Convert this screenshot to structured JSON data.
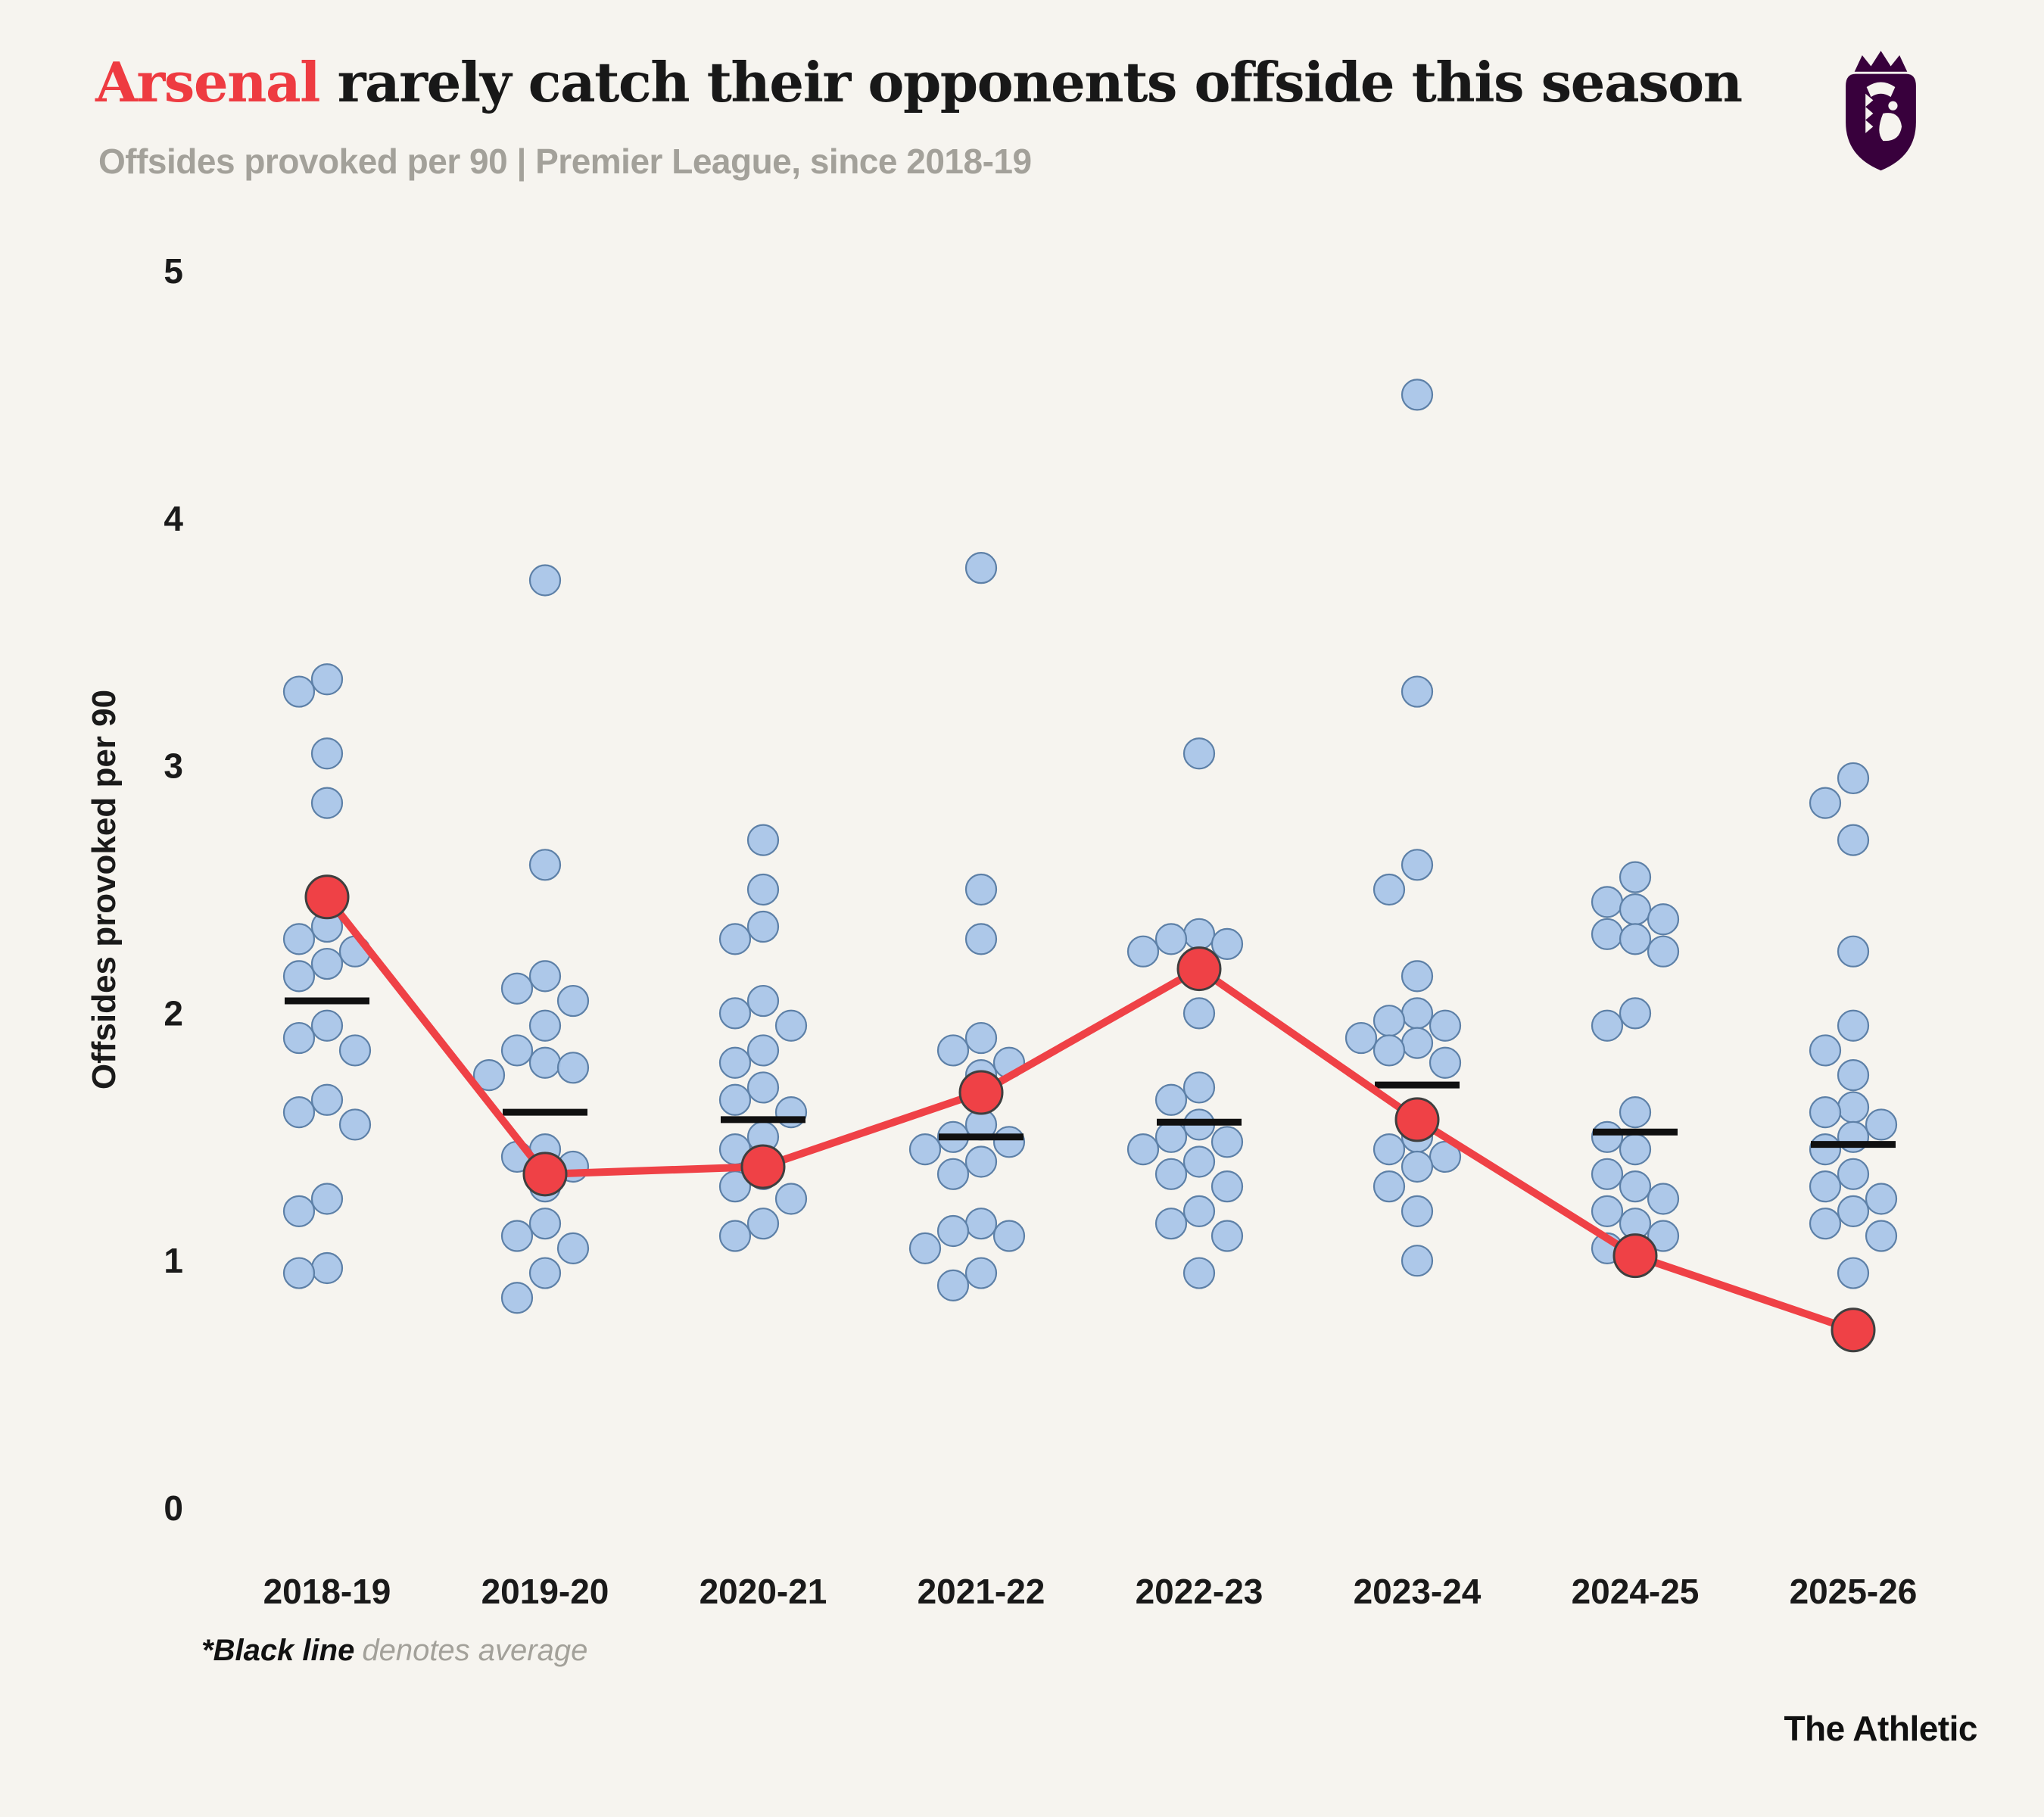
{
  "header": {
    "title_team": "Arsenal",
    "title_rest": " rarely catch their opponents offside this season",
    "subtitle": "Offsides provoked per 90 | Premier League, since 2018-19"
  },
  "footnote": {
    "emphasis": "*Black line",
    "rest": "denotes average"
  },
  "branding": {
    "credit": "The Athletic",
    "logo_name": "premier-league-crest"
  },
  "colors": {
    "background": "#f6f4ef",
    "accent_red": "#ef4146",
    "red_dot_stroke": "#3f3f3f",
    "dot_blue": "#a9c5e8",
    "dot_blue_stroke": "#5d80a7",
    "average_black": "#101010",
    "title_red": "#ee3b41",
    "subtitle_gray": "#a3a19a",
    "axis_text": "#1a1a1a",
    "crest_purple": "#38003c"
  },
  "chart_data": {
    "type": "scatter",
    "title": "Arsenal rarely catch their opponents offside this season",
    "subtitle": "Offsides provoked per 90 | Premier League, since 2018-19",
    "ylabel": "Offsides provoked per 90",
    "xlabel": "",
    "ylim": [
      0,
      5
    ],
    "yticks": [
      0,
      1,
      2,
      3,
      4,
      5
    ],
    "grid": false,
    "legend": "none",
    "categories": [
      "2018-19",
      "2019-20",
      "2020-21",
      "2021-22",
      "2022-23",
      "2023-24",
      "2024-25",
      "2025-26"
    ],
    "series": [
      {
        "name": "Arsenal",
        "values": [
          2.47,
          1.35,
          1.38,
          1.68,
          2.18,
          1.57,
          1.02,
          0.72
        ]
      },
      {
        "name": "League average (black line)",
        "values": [
          2.05,
          1.6,
          1.57,
          1.5,
          1.56,
          1.71,
          1.52,
          1.47
        ]
      }
    ],
    "team_values": [
      [
        3.35,
        3.3,
        3.05,
        2.85,
        2.35,
        2.3,
        2.25,
        2.2,
        2.15,
        1.95,
        1.9,
        1.85,
        1.65,
        1.6,
        1.55,
        1.25,
        1.2,
        0.97,
        0.95
      ],
      [
        3.75,
        2.6,
        2.15,
        2.1,
        2.05,
        1.95,
        1.85,
        1.8,
        1.78,
        1.75,
        1.45,
        1.42,
        1.38,
        1.3,
        1.15,
        1.1,
        1.05,
        0.95,
        0.85
      ],
      [
        2.7,
        2.5,
        2.35,
        2.3,
        2.05,
        2.0,
        1.95,
        1.85,
        1.8,
        1.7,
        1.65,
        1.6,
        1.5,
        1.45,
        1.35,
        1.3,
        1.25,
        1.15,
        1.1
      ],
      [
        3.8,
        2.5,
        2.3,
        1.9,
        1.85,
        1.8,
        1.75,
        1.55,
        1.5,
        1.48,
        1.45,
        1.4,
        1.35,
        1.15,
        1.12,
        1.1,
        1.05,
        0.95,
        0.9
      ],
      [
        3.05,
        2.32,
        2.3,
        2.28,
        2.25,
        2.0,
        1.7,
        1.65,
        1.55,
        1.5,
        1.48,
        1.45,
        1.4,
        1.35,
        1.3,
        1.2,
        1.15,
        1.1,
        0.95
      ],
      [
        4.5,
        3.3,
        2.6,
        2.5,
        2.15,
        2.0,
        1.97,
        1.95,
        1.9,
        1.88,
        1.85,
        1.8,
        1.5,
        1.45,
        1.42,
        1.38,
        1.3,
        1.2,
        1.0
      ],
      [
        2.55,
        2.45,
        2.42,
        2.38,
        2.32,
        2.3,
        2.25,
        2.0,
        1.95,
        1.6,
        1.5,
        1.45,
        1.35,
        1.3,
        1.25,
        1.2,
        1.15,
        1.1,
        1.05
      ],
      [
        2.95,
        2.85,
        2.7,
        2.25,
        1.95,
        1.85,
        1.75,
        1.62,
        1.6,
        1.55,
        1.5,
        1.45,
        1.35,
        1.3,
        1.25,
        1.2,
        1.15,
        1.1,
        0.95
      ]
    ]
  }
}
